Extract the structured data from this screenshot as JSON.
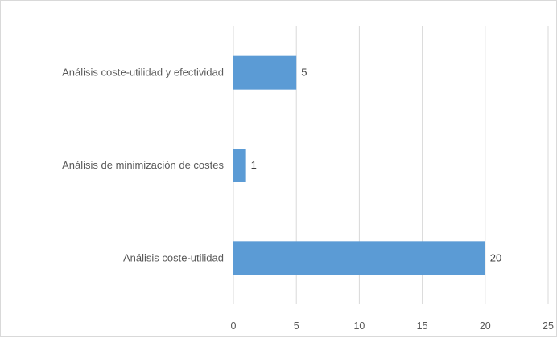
{
  "chart_data": {
    "type": "bar",
    "orientation": "horizontal",
    "categories": [
      "Análisis coste-utilidad y efectividad",
      "Análisis de minimización de costes",
      "Análisis coste-utilidad"
    ],
    "values": [
      5,
      1,
      20
    ],
    "xlim": [
      0,
      25
    ],
    "xticks": [
      "0",
      "5",
      "10",
      "15",
      "20",
      "25"
    ],
    "grid": true,
    "legend": "none",
    "bar_color": "#5b9bd5",
    "title": "",
    "xlabel": "",
    "ylabel": ""
  }
}
